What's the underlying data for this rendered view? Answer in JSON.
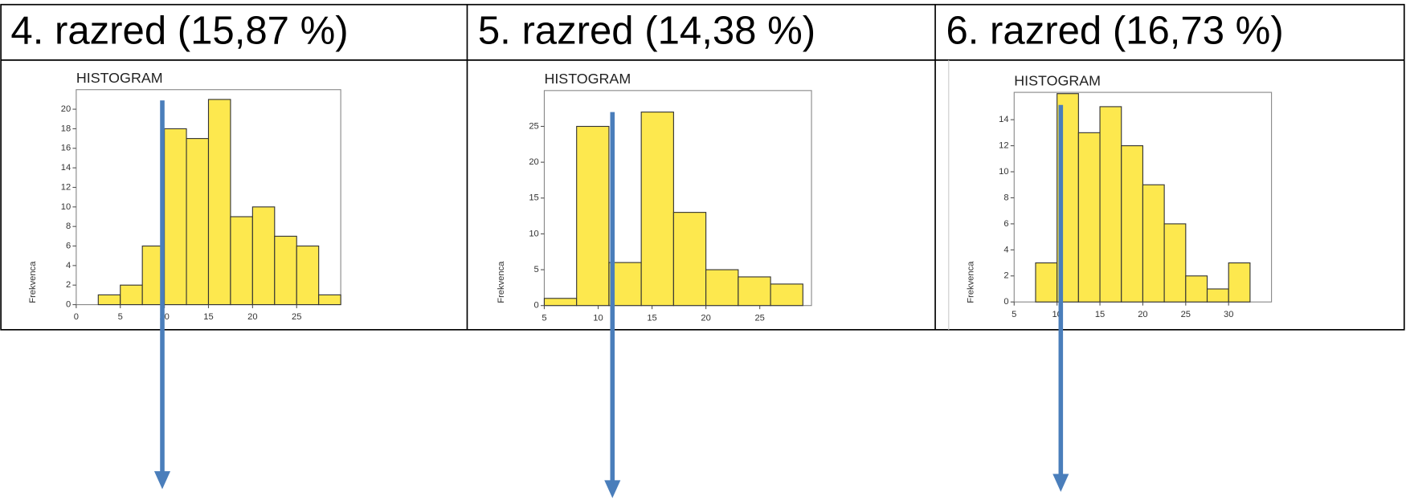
{
  "chart_data": [
    {
      "type": "histogram",
      "header": "4. razred (15,87 %)",
      "title": "HISTOGRAM",
      "y_label": "Frekvenca",
      "bins": [
        2.5,
        5,
        7.5,
        10,
        12.5,
        15,
        17.5,
        20,
        22.5,
        25,
        27.5,
        30
      ],
      "counts": [
        1,
        2,
        6,
        18,
        17,
        21,
        9,
        10,
        7,
        6,
        1
      ],
      "color": "#fde84e",
      "xlim": [
        0,
        30
      ],
      "xticks": [
        0,
        5,
        10,
        15,
        20,
        25
      ],
      "ylim": [
        0,
        22
      ],
      "yticks": [
        0,
        2,
        4,
        6,
        8,
        10,
        12,
        14,
        16,
        18,
        20
      ],
      "grid": false
    },
    {
      "type": "histogram",
      "header": "5. razred (14,38 %)",
      "title": "HISTOGRAM",
      "y_label": "Frekvenca",
      "bins": [
        5,
        8,
        11,
        14,
        17,
        20,
        23,
        26,
        29
      ],
      "counts": [
        1,
        25,
        6,
        27,
        13,
        5,
        4,
        3
      ],
      "color": "#fde84e",
      "xlim": [
        5,
        29.8
      ],
      "xticks": [
        5,
        10,
        15,
        20,
        25
      ],
      "ylim": [
        0,
        30
      ],
      "yticks": [
        0,
        5,
        10,
        15,
        20,
        25
      ],
      "grid": false
    },
    {
      "type": "histogram",
      "header": "6. razred (16,73 %)",
      "title": "HISTOGRAM",
      "y_label": "Frekvenca",
      "bins": [
        7.5,
        10,
        12.5,
        15,
        17.5,
        20,
        22.5,
        25,
        27.5,
        30,
        32.5
      ],
      "counts": [
        3,
        16,
        13,
        15,
        12,
        9,
        6,
        2,
        1,
        3
      ],
      "color": "#fde84e",
      "xlim": [
        5,
        35
      ],
      "xticks": [
        5,
        10,
        15,
        20,
        25,
        30
      ],
      "ylim": [
        0,
        16.1
      ],
      "yticks": [
        0,
        2,
        4,
        6,
        8,
        10,
        12,
        14
      ],
      "grid": false
    }
  ]
}
